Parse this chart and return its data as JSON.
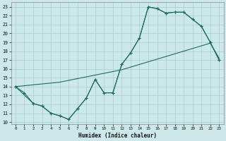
{
  "xlabel": "Humidex (Indice chaleur)",
  "xlim": [
    -0.5,
    23.5
  ],
  "ylim": [
    9.8,
    23.5
  ],
  "yticks": [
    10,
    11,
    12,
    13,
    14,
    15,
    16,
    17,
    18,
    19,
    20,
    21,
    22,
    23
  ],
  "xticks": [
    0,
    1,
    2,
    3,
    4,
    5,
    6,
    7,
    8,
    9,
    10,
    11,
    12,
    13,
    14,
    15,
    16,
    17,
    18,
    19,
    20,
    21,
    22,
    23
  ],
  "bg_color": "#cce8e8",
  "grid_color": "#aacccc",
  "line_color": "#1e6b5e",
  "line1_x": [
    0,
    1,
    2,
    3,
    4,
    5,
    6,
    7,
    8,
    9,
    10,
    11,
    12,
    13,
    14,
    15,
    16,
    17,
    18,
    19,
    20,
    21,
    22,
    23
  ],
  "line1_y": [
    14.0,
    13.3,
    12.1,
    11.8,
    11.0,
    10.7,
    10.3,
    11.5,
    12.7,
    14.8,
    13.3,
    13.3,
    16.5,
    17.8,
    19.5,
    23.0,
    22.8,
    22.3,
    22.4,
    22.4,
    21.6,
    20.8,
    19.0,
    17.0
  ],
  "line2_x": [
    0,
    1,
    2,
    3,
    4,
    5,
    6,
    7,
    8,
    9,
    10,
    11,
    12,
    13,
    14,
    15,
    16,
    17,
    18,
    19,
    20,
    21,
    22,
    23
  ],
  "line2_y": [
    14.0,
    14.1,
    14.2,
    14.3,
    14.4,
    14.5,
    14.7,
    14.9,
    15.1,
    15.3,
    15.5,
    15.7,
    15.9,
    16.2,
    16.5,
    16.8,
    17.1,
    17.4,
    17.7,
    18.0,
    18.3,
    18.6,
    18.9,
    17.2
  ],
  "line3_x": [
    0,
    2,
    3,
    4,
    5,
    6,
    7,
    8,
    9,
    10,
    11,
    12,
    13,
    14,
    15,
    16,
    17,
    18,
    19,
    20,
    21,
    22,
    23
  ],
  "line3_y": [
    14.0,
    12.1,
    11.8,
    11.0,
    10.7,
    10.3,
    11.5,
    12.7,
    14.8,
    13.3,
    13.3,
    16.5,
    17.8,
    19.5,
    23.0,
    22.8,
    22.3,
    22.4,
    22.4,
    21.6,
    20.8,
    19.0,
    17.0
  ]
}
